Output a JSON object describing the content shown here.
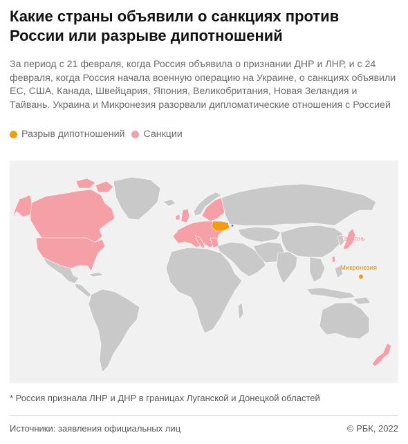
{
  "header": {
    "title": "Какие страны объявили о санкциях против России или разрыве дипотношений",
    "subtitle": "За период с 21 февраля, когда Россия объявила о признании ДНР и ЛНР, и с 24 февраля, когда Россия начала военную операцию на Украине, о санкциях объявили ЕС, США, Канада, Швейцария, Япония, Великобритания, Новая Зеландия и Тайвань. Украина и Микронезия разорвали дипломатические отношения с Россией"
  },
  "legend": {
    "items": [
      {
        "label": "Разрыв дипотношений",
        "color": "#f39c12"
      },
      {
        "label": "Санкции",
        "color": "#f5a0a6"
      }
    ]
  },
  "map": {
    "colors": {
      "ocean": "#f1f1f1",
      "land": "#c9c9c9",
      "sanctions": "#f5a0a6",
      "breakup": "#f39c12",
      "border": "#ffffff"
    },
    "labels": {
      "taiwan": "Тайвань",
      "micronesia": "Микронезия",
      "russia_marker": "*"
    }
  },
  "footer": {
    "footnote": "* Россия признала ЛНР и ДНР в границах Луганской и Донецкой областей",
    "source": "Источники: заявления официальных лиц",
    "copyright": "© РБК, 2022"
  }
}
